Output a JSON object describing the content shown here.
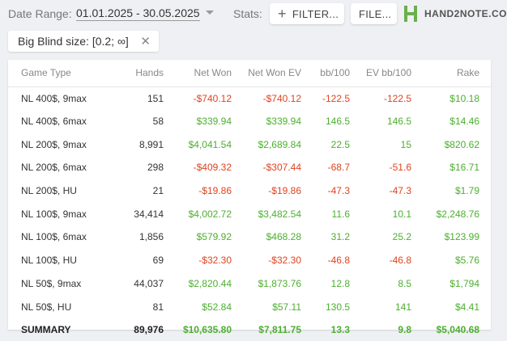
{
  "topbar": {
    "date_range_label": "Date Range:",
    "date_range_value": "01.01.2025 - 30.05.2025",
    "stats_label": "Stats:",
    "filter_button": "FILTER...",
    "file_button": "FILE...",
    "logo_text": "HAND2NOTE.CO"
  },
  "filter_chip": {
    "label": "Big Blind size: [0.2; ∞]"
  },
  "table": {
    "headers": [
      "Game Type",
      "Hands",
      "Net Won",
      "Net Won  EV",
      "bb/100",
      "EV bb/100",
      "Rake"
    ],
    "rows": [
      {
        "game": "NL 400$, 9max",
        "hands": "151",
        "net_won": "-$740.12",
        "net_won_ev": "-$740.12",
        "bb100": "-122.5",
        "ev_bb100": "-122.5",
        "rake": "$10.18"
      },
      {
        "game": "NL 400$, 6max",
        "hands": "58",
        "net_won": "$339.94",
        "net_won_ev": "$339.94",
        "bb100": "146.5",
        "ev_bb100": "146.5",
        "rake": "$14.46"
      },
      {
        "game": "NL 200$, 9max",
        "hands": "8,991",
        "net_won": "$4,041.54",
        "net_won_ev": "$2,689.84",
        "bb100": "22.5",
        "ev_bb100": "15",
        "rake": "$820.62"
      },
      {
        "game": "NL 200$, 6max",
        "hands": "298",
        "net_won": "-$409.32",
        "net_won_ev": "-$307.44",
        "bb100": "-68.7",
        "ev_bb100": "-51.6",
        "rake": "$16.71"
      },
      {
        "game": "NL 200$, HU",
        "hands": "21",
        "net_won": "-$19.86",
        "net_won_ev": "-$19.86",
        "bb100": "-47.3",
        "ev_bb100": "-47.3",
        "rake": "$1.79"
      },
      {
        "game": "NL 100$, 9max",
        "hands": "34,414",
        "net_won": "$4,002.72",
        "net_won_ev": "$3,482.54",
        "bb100": "11.6",
        "ev_bb100": "10.1",
        "rake": "$2,248.76"
      },
      {
        "game": "NL 100$, 6max",
        "hands": "1,856",
        "net_won": "$579.92",
        "net_won_ev": "$468.28",
        "bb100": "31.2",
        "ev_bb100": "25.2",
        "rake": "$123.99"
      },
      {
        "game": "NL 100$, HU",
        "hands": "69",
        "net_won": "-$32.30",
        "net_won_ev": "-$32.30",
        "bb100": "-46.8",
        "ev_bb100": "-46.8",
        "rake": "$5.76"
      },
      {
        "game": "NL 50$, 9max",
        "hands": "44,037",
        "net_won": "$2,820.44",
        "net_won_ev": "$1,873.76",
        "bb100": "12.8",
        "ev_bb100": "8.5",
        "rake": "$1,794"
      },
      {
        "game": "NL 50$, HU",
        "hands": "81",
        "net_won": "$52.84",
        "net_won_ev": "$57.11",
        "bb100": "130.5",
        "ev_bb100": "141",
        "rake": "$4.41"
      }
    ],
    "summary": {
      "game": "SUMMARY",
      "hands": "89,976",
      "net_won": "$10,635.80",
      "net_won_ev": "$7,811.75",
      "bb100": "13.3",
      "ev_bb100": "9.8",
      "rake": "$5,040.68"
    }
  },
  "colors": {
    "positive": "#4caf2f",
    "negative": "#e0431f",
    "logo_green": "#6ab04c"
  }
}
